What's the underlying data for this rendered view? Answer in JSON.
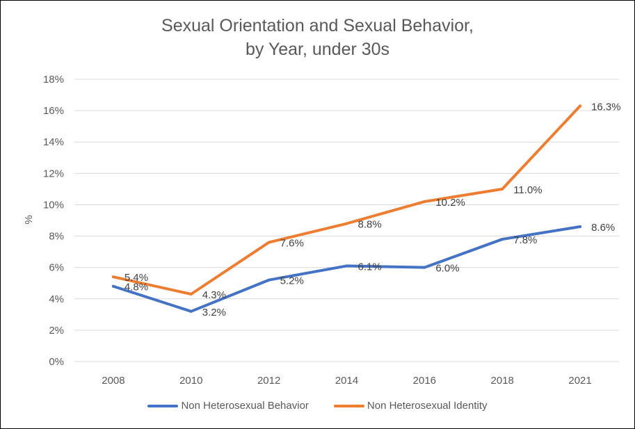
{
  "chart_data": {
    "type": "line",
    "title_line1": "Sexual Orientation and Sexual Behavior,",
    "title_line2": "by Year, under 30s",
    "xlabel": "",
    "ylabel": "%",
    "x": [
      "2008",
      "2010",
      "2012",
      "2014",
      "2016",
      "2018",
      "2021"
    ],
    "ylim": [
      0,
      18
    ],
    "yticks": [
      "0%",
      "2%",
      "4%",
      "6%",
      "8%",
      "10%",
      "12%",
      "14%",
      "16%",
      "18%"
    ],
    "grid": true,
    "legend_position": "bottom",
    "series": [
      {
        "name": "Non Heterosexual Behavior",
        "color": "#4472C4",
        "values": [
          4.8,
          3.2,
          5.2,
          6.1,
          6.0,
          7.8,
          8.6
        ],
        "labels": [
          "4.8%",
          "3.2%",
          "5.2%",
          "6.1%",
          "6.0%",
          "7.8%",
          "8.6%"
        ]
      },
      {
        "name": "Non Heterosexual Identity",
        "color": "#ED7D31",
        "values": [
          5.4,
          4.3,
          7.6,
          8.8,
          10.2,
          11.0,
          16.3
        ],
        "labels": [
          "5.4%",
          "4.3%",
          "7.6%",
          "8.8%",
          "10.2%",
          "11.0%",
          "16.3%"
        ]
      }
    ]
  }
}
